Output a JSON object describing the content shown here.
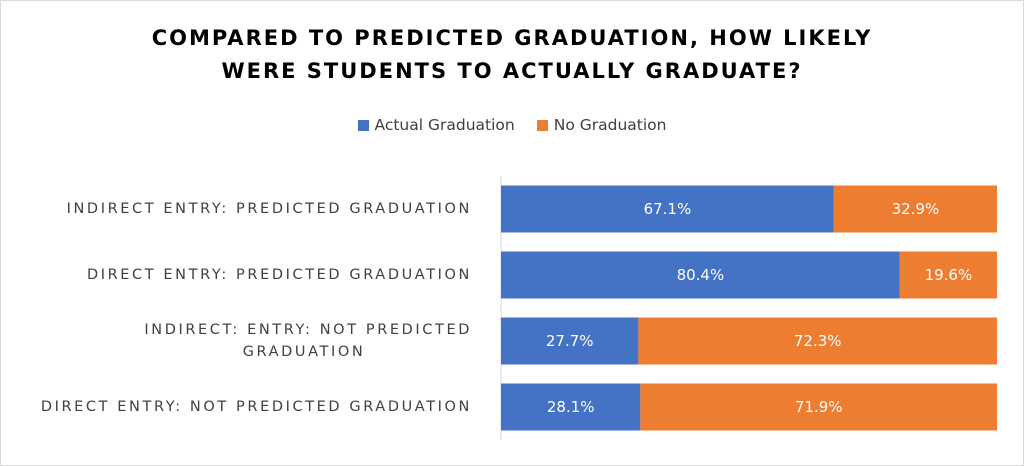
{
  "chart_data": {
    "type": "bar",
    "orientation": "horizontal",
    "stacked": "100%",
    "title_lines": [
      "COMPARED TO PREDICTED GRADUATION, HOW LIKELY",
      "WERE STUDENTS TO ACTUALLY GRADUATE?"
    ],
    "categories": [
      [
        "INDIRECT ENTRY: PREDICTED GRADUATION"
      ],
      [
        "DIRECT ENTRY: PREDICTED GRADUATION"
      ],
      [
        "INDIRECT: ENTRY: NOT PREDICTED",
        "GRADUATION"
      ],
      [
        "DIRECT ENTRY: NOT PREDICTED GRADUATION"
      ]
    ],
    "series": [
      {
        "name": "Actual Graduation",
        "color": "#4472c4",
        "values": [
          67.1,
          80.4,
          27.7,
          28.1
        ],
        "labels": [
          "67.1%",
          "80.4%",
          "27.7%",
          "28.1%"
        ]
      },
      {
        "name": "No Graduation",
        "color": "#ed7d31",
        "values": [
          32.9,
          19.6,
          72.3,
          71.9
        ],
        "labels": [
          "32.9%",
          "19.6%",
          "72.3%",
          "71.9%"
        ]
      }
    ],
    "xlim": [
      0,
      100
    ],
    "legend_position": "top",
    "grid": false
  }
}
